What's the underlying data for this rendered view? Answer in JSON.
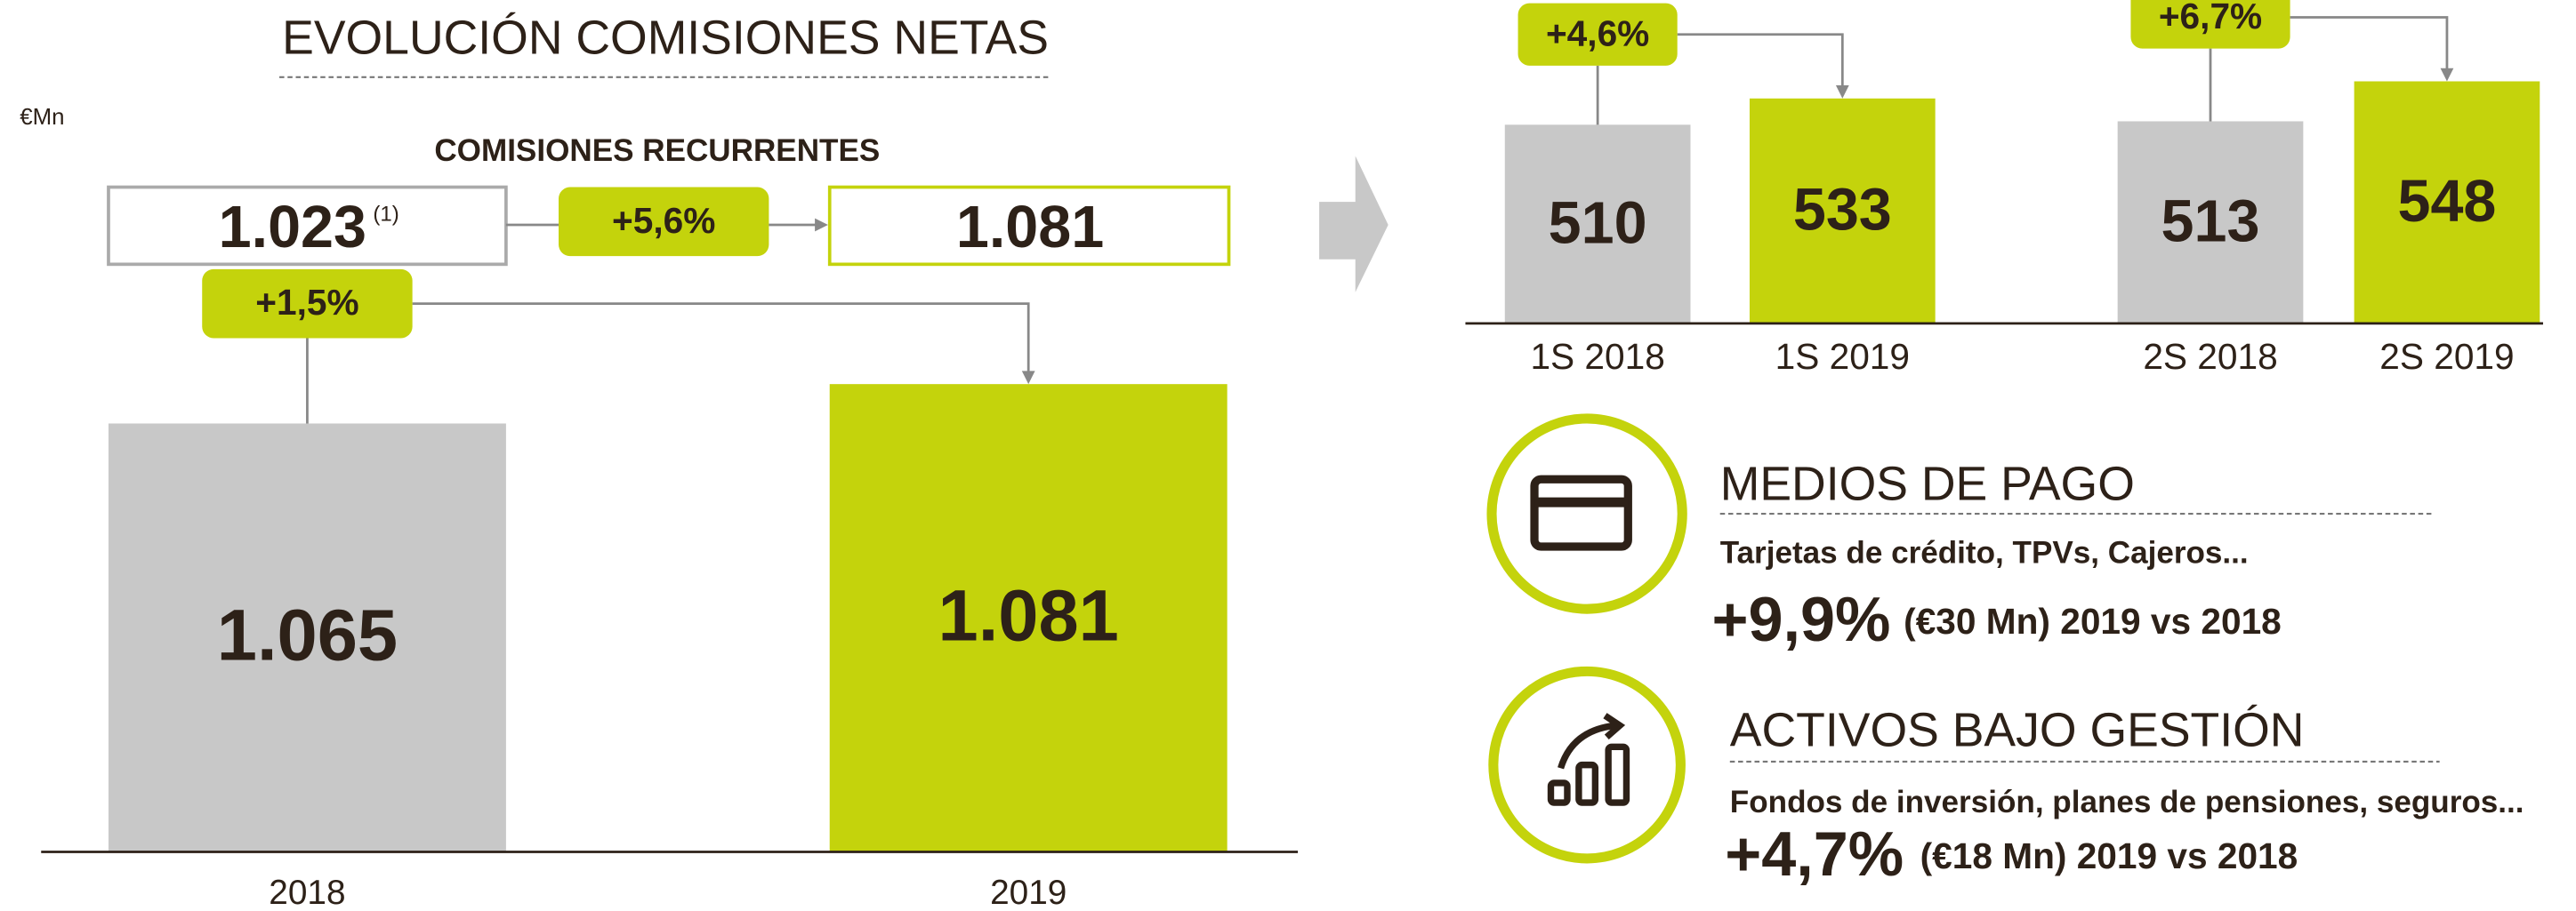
{
  "title": "EVOLUCIÓN COMISIONES NETAS",
  "unit": "€Mn",
  "recurrentes": {
    "title": "COMISIONES RECURRENTES",
    "from": "1.023",
    "note": "(1)",
    "change": "+5,6%",
    "to": "1.081"
  },
  "chart_data": [
    {
      "type": "bar",
      "categories": [
        "2018",
        "2019"
      ],
      "values": [
        1065,
        1081
      ],
      "value_labels": [
        "1.065",
        "1.081"
      ],
      "colors": [
        "#c8c8c8",
        "#c4d30c"
      ],
      "ylim": [
        891,
        1100
      ],
      "annotations": [
        "+1,5%"
      ]
    },
    {
      "type": "bar",
      "categories": [
        "1S 2018",
        "1S 2019",
        "2S 2018",
        "2S 2019"
      ],
      "values": [
        510,
        533,
        513,
        548
      ],
      "value_labels": [
        "510",
        "533",
        "513",
        "548"
      ],
      "colors": [
        "#c8c8c8",
        "#c4d30c",
        "#c8c8c8",
        "#c4d30c"
      ],
      "ylim": [
        336,
        560
      ],
      "annotations": [
        "+4,6%",
        "+6,7%"
      ]
    }
  ],
  "highlights": [
    {
      "title": "MEDIOS DE PAGO",
      "subtitle": "Tarjetas de crédito, TPVs, Cajeros...",
      "growth": "+9,9%",
      "detail": "(€30 Mn) 2019 vs 2018"
    },
    {
      "title": "ACTIVOS BAJO GESTIÓN",
      "subtitle": "Fondos de inversión, planes de pensiones, seguros...",
      "growth": "+4,7%",
      "detail": "(€18 Mn) 2019 vs 2018"
    }
  ]
}
